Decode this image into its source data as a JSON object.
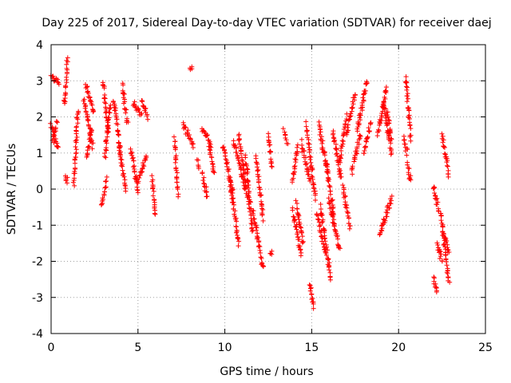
{
  "chart_data": {
    "type": "scatter",
    "title": "Day 225 of 2017, Sidereal Day-to-day VTEC variation (SDTVAR) for receiver daej",
    "xlabel": "GPS time / hours",
    "ylabel": "SDTVAR / TECUs",
    "xlim": [
      0,
      25
    ],
    "ylim": [
      -4,
      4
    ],
    "xticks": [
      0,
      5,
      10,
      15,
      20,
      25
    ],
    "yticks": [
      -4,
      -3,
      -2,
      -1,
      0,
      1,
      2,
      3,
      4
    ],
    "grid": true,
    "marker": "+",
    "color": "#ff0000",
    "series": [
      {
        "name": "SDTVAR",
        "tracks": [
          {
            "x0": 0.0,
            "x1": 0.4,
            "y0": 1.8,
            "y1": 1.1
          },
          {
            "x0": 0.0,
            "x1": 0.45,
            "y0": 3.2,
            "y1": 2.9
          },
          {
            "x0": 0.1,
            "x1": 0.35,
            "y0": 1.3,
            "y1": 1.9
          },
          {
            "x0": 0.75,
            "x1": 0.95,
            "y0": 2.3,
            "y1": 3.6
          },
          {
            "x0": 0.8,
            "x1": 0.95,
            "y0": 0.4,
            "y1": 0.2
          },
          {
            "x0": 1.3,
            "x1": 1.55,
            "y0": 0.1,
            "y1": 2.2
          },
          {
            "x0": 1.9,
            "x1": 2.4,
            "y0": 2.5,
            "y1": 1.2
          },
          {
            "x0": 2.0,
            "x1": 2.45,
            "y0": 2.9,
            "y1": 2.1
          },
          {
            "x0": 2.05,
            "x1": 2.35,
            "y0": 0.9,
            "y1": 1.7
          },
          {
            "x0": 2.9,
            "x1": 3.2,
            "y0": -0.5,
            "y1": 0.3
          },
          {
            "x0": 3.0,
            "x1": 3.3,
            "y0": 3.0,
            "y1": 1.5
          },
          {
            "x0": 3.1,
            "x1": 3.4,
            "y0": 0.9,
            "y1": 2.4
          },
          {
            "x0": 3.6,
            "x1": 4.0,
            "y0": 2.5,
            "y1": 1.0
          },
          {
            "x0": 3.9,
            "x1": 4.3,
            "y0": 1.2,
            "y1": 0.0
          },
          {
            "x0": 4.1,
            "x1": 4.4,
            "y0": 2.9,
            "y1": 1.8
          },
          {
            "x0": 4.6,
            "x1": 5.0,
            "y0": 1.1,
            "y1": -0.1
          },
          {
            "x0": 4.7,
            "x1": 5.2,
            "y0": 2.4,
            "y1": 2.1
          },
          {
            "x0": 5.0,
            "x1": 5.5,
            "y0": 0.2,
            "y1": 0.9
          },
          {
            "x0": 5.2,
            "x1": 5.55,
            "y0": 2.5,
            "y1": 2.0
          },
          {
            "x0": 5.8,
            "x1": 6.0,
            "y0": 0.3,
            "y1": -0.7
          },
          {
            "x0": 7.1,
            "x1": 7.3,
            "y0": 1.4,
            "y1": -0.2
          },
          {
            "x0": 7.6,
            "x1": 8.2,
            "y0": 1.8,
            "y1": 1.2
          },
          {
            "x0": 8.0,
            "x1": 8.1,
            "y0": 3.35,
            "y1": 3.4
          },
          {
            "x0": 8.4,
            "x1": 8.5,
            "y0": 0.8,
            "y1": 0.6
          },
          {
            "x0": 8.7,
            "x1": 9.0,
            "y0": 0.4,
            "y1": -0.2
          },
          {
            "x0": 8.7,
            "x1": 9.2,
            "y0": 1.7,
            "y1": 1.2
          },
          {
            "x0": 9.1,
            "x1": 9.4,
            "y0": 1.2,
            "y1": 0.5
          },
          {
            "x0": 9.9,
            "x1": 10.5,
            "y0": 1.2,
            "y1": -0.2
          },
          {
            "x0": 10.3,
            "x1": 10.8,
            "y0": 0.2,
            "y1": -1.5
          },
          {
            "x0": 10.5,
            "x1": 11.2,
            "y0": 1.3,
            "y1": 0.0
          },
          {
            "x0": 10.8,
            "x1": 11.4,
            "y0": 1.5,
            "y1": -0.5
          },
          {
            "x0": 11.2,
            "x1": 11.6,
            "y0": 0.9,
            "y1": -1.2
          },
          {
            "x0": 11.6,
            "x1": 12.2,
            "y0": -0.6,
            "y1": -2.2
          },
          {
            "x0": 11.8,
            "x1": 12.2,
            "y0": 0.9,
            "y1": -0.8
          },
          {
            "x0": 12.5,
            "x1": 12.7,
            "y0": 1.5,
            "y1": 0.6
          },
          {
            "x0": 12.6,
            "x1": 12.7,
            "y0": -1.8,
            "y1": -1.8
          },
          {
            "x0": 13.4,
            "x1": 13.6,
            "y0": 1.6,
            "y1": 1.3
          },
          {
            "x0": 13.9,
            "x1": 14.2,
            "y0": 0.2,
            "y1": 1.2
          },
          {
            "x0": 13.9,
            "x1": 14.4,
            "y0": -0.6,
            "y1": -1.8
          },
          {
            "x0": 14.1,
            "x1": 14.5,
            "y0": -0.4,
            "y1": -1.5
          },
          {
            "x0": 14.4,
            "x1": 14.9,
            "y0": 1.3,
            "y1": 0.2
          },
          {
            "x0": 14.7,
            "x1": 15.2,
            "y0": 1.8,
            "y1": -0.3
          },
          {
            "x0": 14.9,
            "x1": 15.1,
            "y0": -2.6,
            "y1": -3.3
          },
          {
            "x0": 15.3,
            "x1": 15.8,
            "y0": -0.7,
            "y1": -1.8
          },
          {
            "x0": 15.4,
            "x1": 15.9,
            "y0": 1.8,
            "y1": 0.5
          },
          {
            "x0": 15.5,
            "x1": 16.1,
            "y0": -0.5,
            "y1": -2.5
          },
          {
            "x0": 15.8,
            "x1": 16.3,
            "y0": 0.8,
            "y1": -0.8
          },
          {
            "x0": 16.0,
            "x1": 16.6,
            "y0": -0.3,
            "y1": -1.7
          },
          {
            "x0": 16.2,
            "x1": 16.7,
            "y0": 1.6,
            "y1": 0.3
          },
          {
            "x0": 16.6,
            "x1": 17.0,
            "y0": 0.7,
            "y1": 2.0
          },
          {
            "x0": 16.8,
            "x1": 17.2,
            "y0": 0.1,
            "y1": -1.1
          },
          {
            "x0": 17.0,
            "x1": 17.5,
            "y0": 1.5,
            "y1": 2.7
          },
          {
            "x0": 17.3,
            "x1": 17.8,
            "y0": 0.5,
            "y1": 1.5
          },
          {
            "x0": 17.6,
            "x1": 18.2,
            "y0": 1.6,
            "y1": 3.0
          },
          {
            "x0": 18.0,
            "x1": 18.4,
            "y0": 1.0,
            "y1": 1.8
          },
          {
            "x0": 18.8,
            "x1": 19.3,
            "y0": 1.5,
            "y1": 2.8
          },
          {
            "x0": 18.9,
            "x1": 19.6,
            "y0": -1.3,
            "y1": -0.2
          },
          {
            "x0": 19.1,
            "x1": 19.6,
            "y0": 2.4,
            "y1": 1.0
          },
          {
            "x0": 19.3,
            "x1": 19.6,
            "y0": 2.2,
            "y1": 1.4
          },
          {
            "x0": 20.4,
            "x1": 20.7,
            "y0": 3.1,
            "y1": 1.4
          },
          {
            "x0": 20.5,
            "x1": 20.7,
            "y0": 0.7,
            "y1": 0.2
          },
          {
            "x0": 20.3,
            "x1": 20.5,
            "y0": 1.4,
            "y1": 1.0
          },
          {
            "x0": 22.0,
            "x1": 22.2,
            "y0": -2.5,
            "y1": -2.9
          },
          {
            "x0": 22.0,
            "x1": 22.3,
            "y0": 0.1,
            "y1": -0.6
          },
          {
            "x0": 22.2,
            "x1": 22.5,
            "y0": -1.5,
            "y1": -2.0
          },
          {
            "x0": 22.4,
            "x1": 22.9,
            "y0": -0.6,
            "y1": -2.6
          },
          {
            "x0": 22.5,
            "x1": 22.9,
            "y0": 1.5,
            "y1": 0.4
          },
          {
            "x0": 22.6,
            "x1": 22.9,
            "y0": -1.2,
            "y1": -1.8
          }
        ]
      }
    ]
  }
}
